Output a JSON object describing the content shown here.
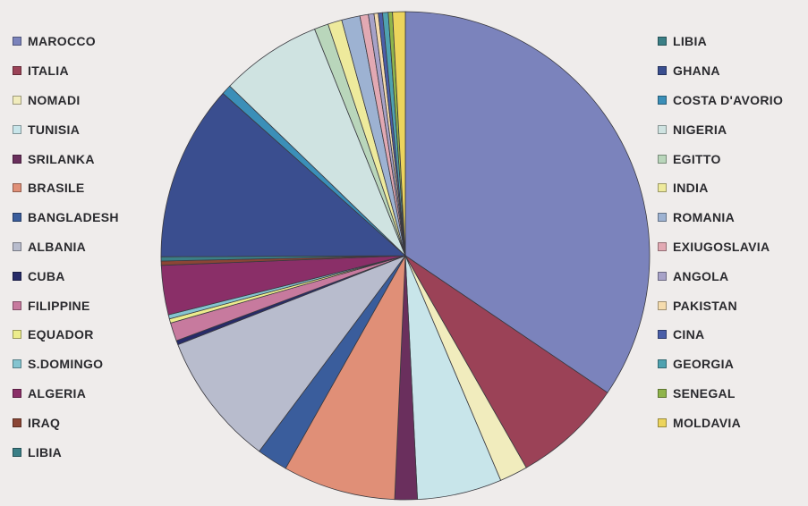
{
  "chart_data": {
    "type": "pie",
    "title": "",
    "slices": [
      {
        "label": "MAROCCO",
        "value": 37.0,
        "color": "#7b83bc"
      },
      {
        "label": "ITALIA",
        "value": 7.8,
        "color": "#9b4257"
      },
      {
        "label": "NOMADI",
        "value": 2.0,
        "color": "#f1ecbd"
      },
      {
        "label": "TUNISIA",
        "value": 6.0,
        "color": "#c8e5ea"
      },
      {
        "label": "SRI LANKA",
        "value": 1.6,
        "color": "#6a2f5d"
      },
      {
        "label": "BRASILE",
        "value": 8.0,
        "color": "#e08f77"
      },
      {
        "label": "BANGLADESH",
        "value": 2.2,
        "color": "#3a5d9c"
      },
      {
        "label": "ALBANIA",
        "value": 9.5,
        "color": "#b8bccd"
      },
      {
        "label": "CUBA",
        "value": 0.3,
        "color": "#272b68"
      },
      {
        "label": "FILIPPINE",
        "value": 1.3,
        "color": "#c77a9e"
      },
      {
        "label": "EQUADOR",
        "value": 0.3,
        "color": "#ecec8c"
      },
      {
        "label": "S.DOMINGO",
        "value": 0.3,
        "color": "#84c4d0"
      },
      {
        "label": "ALGERIA",
        "value": 3.5,
        "color": "#8a2f68"
      },
      {
        "label": "IRAQ",
        "value": 0.3,
        "color": "#8b4535"
      },
      {
        "label": "LIBIA",
        "value": 0.3,
        "color": "#3b7f86"
      },
      {
        "label": "GHANA",
        "value": 12.5,
        "color": "#3a4e8f"
      },
      {
        "label": "COSTA D'AVORIO",
        "value": 0.7,
        "color": "#3b8fb8"
      },
      {
        "label": "NIGERIA",
        "value": 7.2,
        "color": "#cfe3e1"
      },
      {
        "label": "EGITTO",
        "value": 1.0,
        "color": "#b9d6bb"
      },
      {
        "label": "INDIA",
        "value": 1.0,
        "color": "#eeea9c"
      },
      {
        "label": "ROMANIA",
        "value": 1.3,
        "color": "#9db2d2"
      },
      {
        "label": "EXIUGOSLAVIA",
        "value": 0.6,
        "color": "#e2a9b3"
      },
      {
        "label": "ANGOLA",
        "value": 0.4,
        "color": "#a7a2c8"
      },
      {
        "label": "PAKISTAN",
        "value": 0.3,
        "color": "#f5dcae"
      },
      {
        "label": "CINA",
        "value": 0.3,
        "color": "#4a5ea8"
      },
      {
        "label": "GEORGIA",
        "value": 0.4,
        "color": "#4fa2b0"
      },
      {
        "label": "SENEGAL",
        "value": 0.3,
        "color": "#8fb44a"
      },
      {
        "label": "MOLDAVIA",
        "value": 0.9,
        "color": "#ecd45c"
      }
    ],
    "legend_left": [
      {
        "label": "MAROCCO",
        "color": "#7b83bc"
      },
      {
        "label": "ITALIA",
        "color": "#9b4257"
      },
      {
        "label": "NOMADI",
        "color": "#f1ecbd"
      },
      {
        "label": "TUNISIA",
        "color": "#c8e5ea"
      },
      {
        "label": "SRILANKA",
        "color": "#6a2f5d"
      },
      {
        "label": "BRASILE",
        "color": "#e08f77"
      },
      {
        "label": "BANGLADESH",
        "color": "#3a5d9c"
      },
      {
        "label": "ALBANIA",
        "color": "#b8bccd"
      },
      {
        "label": "CUBA",
        "color": "#272b68"
      },
      {
        "label": "FILIPPINE",
        "color": "#c77a9e"
      },
      {
        "label": "EQUADOR",
        "color": "#ecec8c"
      },
      {
        "label": "S.DOMINGO",
        "color": "#84c4d0"
      },
      {
        "label": "ALGERIA",
        "color": "#8a2f68"
      },
      {
        "label": "IRAQ",
        "color": "#8b4535"
      },
      {
        "label": "LIBIA",
        "color": "#3b7f86"
      }
    ],
    "legend_right": [
      {
        "label": "LIBIA",
        "color": "#3b7f86"
      },
      {
        "label": "GHANA",
        "color": "#3a4e8f"
      },
      {
        "label": "COSTA D'AVORIO",
        "color": "#3b8fb8"
      },
      {
        "label": "NIGERIA",
        "color": "#cfe3e1"
      },
      {
        "label": "EGITTO",
        "color": "#b9d6bb"
      },
      {
        "label": "INDIA",
        "color": "#eeea9c"
      },
      {
        "label": "ROMANIA",
        "color": "#9db2d2"
      },
      {
        "label": "EXIUGOSLAVIA",
        "color": "#e2a9b3"
      },
      {
        "label": "ANGOLA",
        "color": "#a7a2c8"
      },
      {
        "label": "PAKISTAN",
        "color": "#f5dcae"
      },
      {
        "label": "CINA",
        "color": "#4a5ea8"
      },
      {
        "label": "GEORGIA",
        "color": "#4fa2b0"
      },
      {
        "label": "SENEGAL",
        "color": "#8fb44a"
      },
      {
        "label": "MOLDAVIA",
        "color": "#ecd45c"
      }
    ]
  }
}
